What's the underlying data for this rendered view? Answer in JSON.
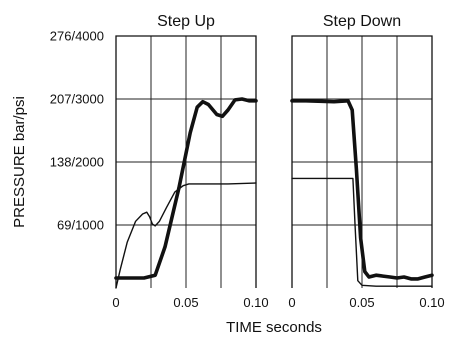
{
  "chart_data": {
    "type": "line",
    "ylabel": "PRESSURE  bar/psi",
    "xlabel": "TIME  seconds",
    "y_ticks": [
      {
        "value": 69,
        "label": "69/1000"
      },
      {
        "value": 138,
        "label": "138/2000"
      },
      {
        "value": 207,
        "label": "207/3000"
      },
      {
        "value": 276,
        "label": "276/4000"
      }
    ],
    "ylim": [
      0,
      276
    ],
    "grid": true,
    "panels": [
      {
        "title": "Step Up",
        "xlim": [
          0,
          0.1
        ],
        "x_ticks": [
          {
            "value": 0,
            "label": "0"
          },
          {
            "value": 0.05,
            "label": "0.05"
          },
          {
            "value": 0.1,
            "label": "0.10"
          }
        ],
        "series": [
          {
            "style": "thick",
            "points": [
              [
                0,
                11
              ],
              [
                0.02,
                11
              ],
              [
                0.028,
                14
              ],
              [
                0.035,
                45
              ],
              [
                0.045,
                110
              ],
              [
                0.053,
                170
              ],
              [
                0.058,
                198
              ],
              [
                0.062,
                204
              ],
              [
                0.066,
                201
              ],
              [
                0.072,
                190
              ],
              [
                0.076,
                188
              ],
              [
                0.08,
                195
              ],
              [
                0.085,
                206
              ],
              [
                0.09,
                207
              ],
              [
                0.095,
                205
              ],
              [
                0.1,
                205
              ]
            ]
          },
          {
            "style": "thin",
            "points": [
              [
                0,
                0
              ],
              [
                0.003,
                20
              ],
              [
                0.008,
                50
              ],
              [
                0.014,
                73
              ],
              [
                0.019,
                81
              ],
              [
                0.022,
                83
              ],
              [
                0.024,
                78
              ],
              [
                0.026,
                70
              ],
              [
                0.028,
                68
              ],
              [
                0.031,
                73
              ],
              [
                0.036,
                88
              ],
              [
                0.042,
                105
              ],
              [
                0.048,
                112
              ],
              [
                0.052,
                114
              ],
              [
                0.06,
                114
              ],
              [
                0.08,
                114
              ],
              [
                0.1,
                115
              ]
            ]
          }
        ]
      },
      {
        "title": "Step Down",
        "xlim": [
          0,
          0.1
        ],
        "x_ticks": [
          {
            "value": 0,
            "label": "0"
          },
          {
            "value": 0.05,
            "label": "0.05"
          },
          {
            "value": 0.1,
            "label": "0.10"
          }
        ],
        "series": [
          {
            "style": "thick",
            "points": [
              [
                0,
                205
              ],
              [
                0.01,
                205
              ],
              [
                0.03,
                204
              ],
              [
                0.04,
                205
              ],
              [
                0.043,
                195
              ],
              [
                0.046,
                130
              ],
              [
                0.049,
                55
              ],
              [
                0.052,
                18
              ],
              [
                0.055,
                12
              ],
              [
                0.06,
                14
              ],
              [
                0.065,
                13
              ],
              [
                0.07,
                12
              ],
              [
                0.075,
                11
              ],
              [
                0.08,
                12
              ],
              [
                0.085,
                10
              ],
              [
                0.09,
                10
              ],
              [
                0.095,
                12
              ],
              [
                0.1,
                14
              ]
            ]
          },
          {
            "style": "thin",
            "points": [
              [
                0,
                120
              ],
              [
                0.04,
                120
              ],
              [
                0.0435,
                120
              ],
              [
                0.045,
                70
              ],
              [
                0.047,
                8
              ],
              [
                0.05,
                3
              ],
              [
                0.06,
                2
              ],
              [
                0.08,
                2
              ],
              [
                0.1,
                2
              ]
            ]
          }
        ]
      }
    ]
  },
  "colors": {
    "line": "#111111",
    "grid": "#222222",
    "background": "#ffffff"
  }
}
